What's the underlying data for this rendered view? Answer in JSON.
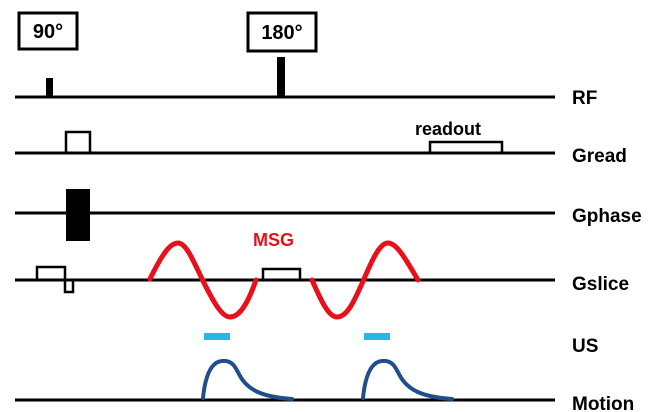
{
  "rf_pulses": {
    "excitation_label": "90°",
    "refocusing_label": "180°"
  },
  "rows": {
    "rf": "RF",
    "gread": "Gread",
    "gphase": "Gphase",
    "gslice": "Gslice",
    "us": "US",
    "motion": "Motion"
  },
  "annotations": {
    "readout": "readout",
    "msg": "MSG"
  },
  "colors": {
    "msg": "#e8101a",
    "us": "#29b6e8",
    "motion": "#1f4e8c",
    "lines": "#000000"
  }
}
